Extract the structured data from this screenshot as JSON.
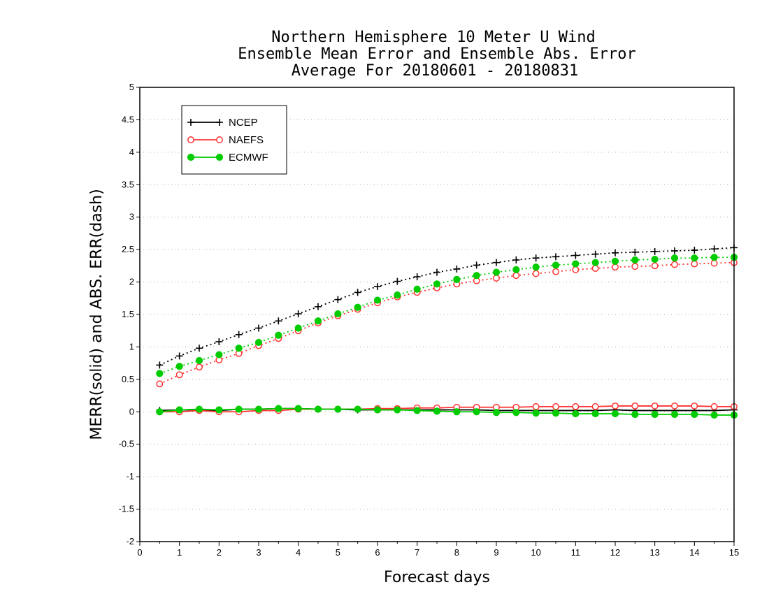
{
  "chart_data": {
    "type": "line",
    "title": "Northern Hemisphere 10 Meter U Wind",
    "subtitle": "Ensemble Mean Error and Ensemble Abs. Error",
    "subtitle2": "Average For 20180601 - 20180831",
    "xlabel": "Forecast days",
    "ylabel": "MERR(solid) and ABS. ERR(dash)",
    "xlim": [
      0,
      15
    ],
    "ylim": [
      -2,
      5
    ],
    "xticks": [
      "0",
      "1",
      "2",
      "3",
      "4",
      "5",
      "6",
      "7",
      "8",
      "9",
      "10",
      "11",
      "12",
      "13",
      "14",
      "15"
    ],
    "yticks": [
      "-2",
      "-1.5",
      "-1",
      "-0.5",
      "0",
      "0.5",
      "1",
      "1.5",
      "2",
      "2.5",
      "3",
      "3.5",
      "4",
      "4.5",
      "5"
    ],
    "grid": "horizontal dotted",
    "legend_position": "top-left",
    "x": [
      0.5,
      1,
      1.5,
      2,
      2.5,
      3,
      3.5,
      4,
      4.5,
      5,
      5.5,
      6,
      6.5,
      7,
      7.5,
      8,
      8.5,
      9,
      9.5,
      10,
      10.5,
      11,
      11.5,
      12,
      12.5,
      13,
      13.5,
      14,
      14.5,
      15
    ],
    "series": [
      {
        "name": "NCEP",
        "color": "#000000",
        "marker": "plus",
        "abs_err": [
          0.72,
          0.86,
          0.98,
          1.08,
          1.19,
          1.29,
          1.4,
          1.51,
          1.62,
          1.73,
          1.84,
          1.93,
          2.01,
          2.08,
          2.15,
          2.2,
          2.26,
          2.3,
          2.34,
          2.37,
          2.39,
          2.41,
          2.43,
          2.45,
          2.46,
          2.47,
          2.48,
          2.49,
          2.51,
          2.53
        ],
        "mean_err": [
          0.02,
          0.03,
          0.03,
          0.02,
          0.04,
          0.04,
          0.05,
          0.05,
          0.04,
          0.04,
          0.03,
          0.03,
          0.03,
          0.03,
          0.03,
          0.03,
          0.03,
          0.02,
          0.02,
          0.02,
          0.02,
          0.02,
          0.02,
          0.03,
          0.02,
          0.02,
          0.02,
          0.02,
          0.02,
          0.03
        ]
      },
      {
        "name": "NAEFS",
        "color": "#ff3333",
        "marker": "open-circle",
        "abs_err": [
          0.43,
          0.57,
          0.69,
          0.8,
          0.9,
          1.02,
          1.13,
          1.25,
          1.37,
          1.48,
          1.58,
          1.68,
          1.77,
          1.84,
          1.91,
          1.97,
          2.02,
          2.06,
          2.1,
          2.13,
          2.16,
          2.19,
          2.21,
          2.23,
          2.24,
          2.25,
          2.27,
          2.28,
          2.29,
          2.3
        ],
        "mean_err": [
          0.0,
          0.0,
          0.02,
          0.0,
          0.0,
          0.02,
          0.02,
          0.04,
          0.04,
          0.04,
          0.04,
          0.05,
          0.05,
          0.06,
          0.06,
          0.07,
          0.07,
          0.07,
          0.07,
          0.08,
          0.08,
          0.08,
          0.08,
          0.09,
          0.09,
          0.09,
          0.09,
          0.09,
          0.08,
          0.08
        ]
      },
      {
        "name": "ECMWF",
        "color": "#00cc00",
        "marker": "filled-circle",
        "abs_err": [
          0.59,
          0.7,
          0.79,
          0.88,
          0.98,
          1.07,
          1.18,
          1.29,
          1.4,
          1.51,
          1.61,
          1.72,
          1.8,
          1.89,
          1.97,
          2.04,
          2.1,
          2.15,
          2.19,
          2.23,
          2.26,
          2.28,
          2.3,
          2.32,
          2.34,
          2.35,
          2.37,
          2.37,
          2.38,
          2.38
        ],
        "mean_err": [
          0.0,
          0.03,
          0.04,
          0.03,
          0.04,
          0.04,
          0.05,
          0.05,
          0.04,
          0.04,
          0.04,
          0.03,
          0.03,
          0.02,
          0.01,
          0.0,
          0.0,
          -0.01,
          -0.01,
          -0.02,
          -0.02,
          -0.03,
          -0.03,
          -0.03,
          -0.04,
          -0.04,
          -0.04,
          -0.04,
          -0.05,
          -0.05
        ]
      }
    ]
  }
}
